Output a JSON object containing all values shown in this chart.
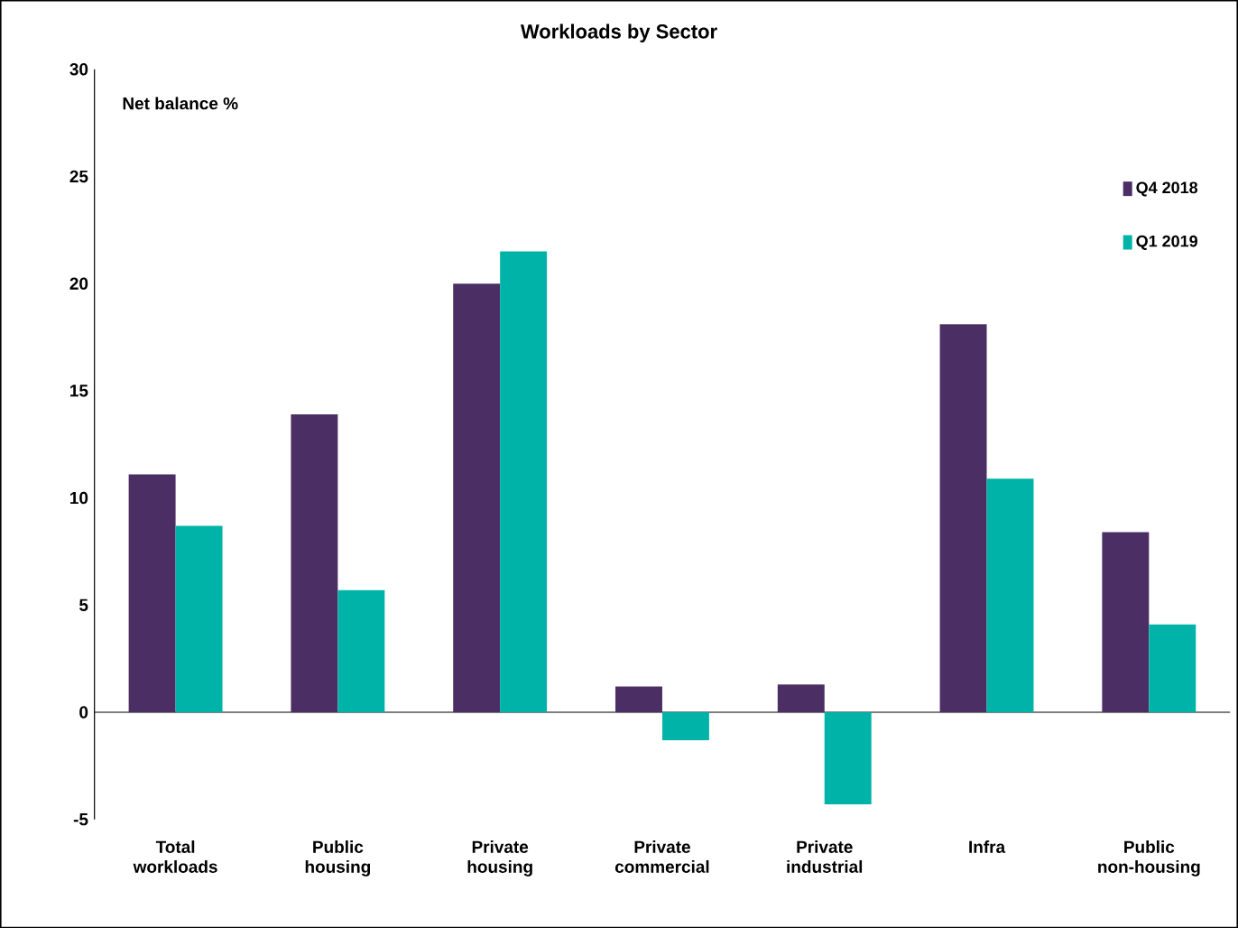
{
  "chart_data": {
    "type": "bar",
    "title": "Workloads by Sector",
    "ylabel": "Net balance %",
    "categories": [
      "Total workloads",
      "Public housing",
      "Private housing",
      "Private commercial",
      "Private industrial",
      "Infra",
      "Public non-housing"
    ],
    "series": [
      {
        "name": "Q4 2018",
        "color": "#4b2e63",
        "values": [
          11.1,
          13.9,
          20,
          1.2,
          1.3,
          18.1,
          8.4
        ]
      },
      {
        "name": "Q1 2019",
        "color": "#00b3a8",
        "values": [
          8.7,
          5.7,
          21.5,
          -1.3,
          -4.3,
          10.9,
          4.1
        ]
      }
    ],
    "ylim": [
      -5,
      30
    ],
    "yticks": [
      -5,
      0,
      5,
      10,
      15,
      20,
      25,
      30
    ],
    "legend": "top right"
  }
}
